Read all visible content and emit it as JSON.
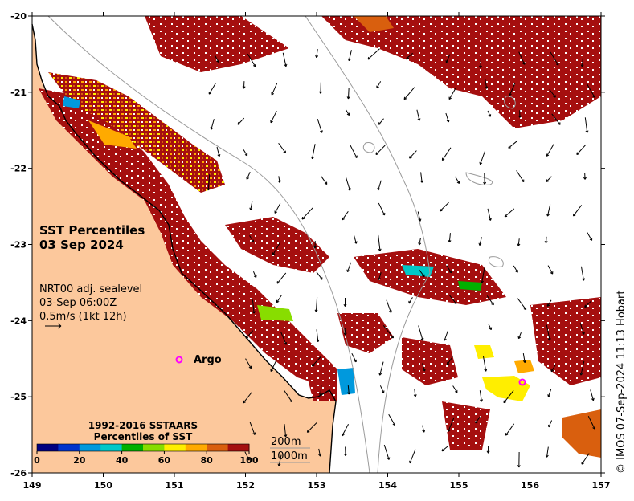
{
  "map": {
    "title_line1": "SST Percentiles",
    "title_line2": "03 Sep 2024",
    "info_line1": "NRT00 adj. sealevel",
    "info_line2": "03-Sep 06:00Z",
    "info_line3": "0.5m/s (1kt 12h)",
    "argo_label": "Argo",
    "x_ticks": [
      "149",
      "150",
      "151",
      "152",
      "153",
      "154",
      "155",
      "156",
      "157"
    ],
    "y_ticks": [
      "-20",
      "-21",
      "-22",
      "-23",
      "-24",
      "-25",
      "-26"
    ],
    "depth_contours": [
      "200m",
      "1000m"
    ],
    "credit": "© IMOS 07-Sep-2024 11:13 Hobart",
    "colors": {
      "land": "#fcc89c",
      "ocean": "#ffffff",
      "coast": "#000000",
      "contour": "#9a9a9a"
    }
  },
  "colorbar": {
    "title_line1": "1992-2016 SSTAARS",
    "title_line2": "Percentiles of SST",
    "tick_labels": [
      "0",
      "20",
      "40",
      "60",
      "80",
      "100"
    ],
    "colors": [
      "#000080",
      "#0033cc",
      "#0099dd",
      "#00c8c8",
      "#00b000",
      "#88dd00",
      "#ffee00",
      "#ffaa00",
      "#d95f0e",
      "#a50f0f"
    ]
  }
}
